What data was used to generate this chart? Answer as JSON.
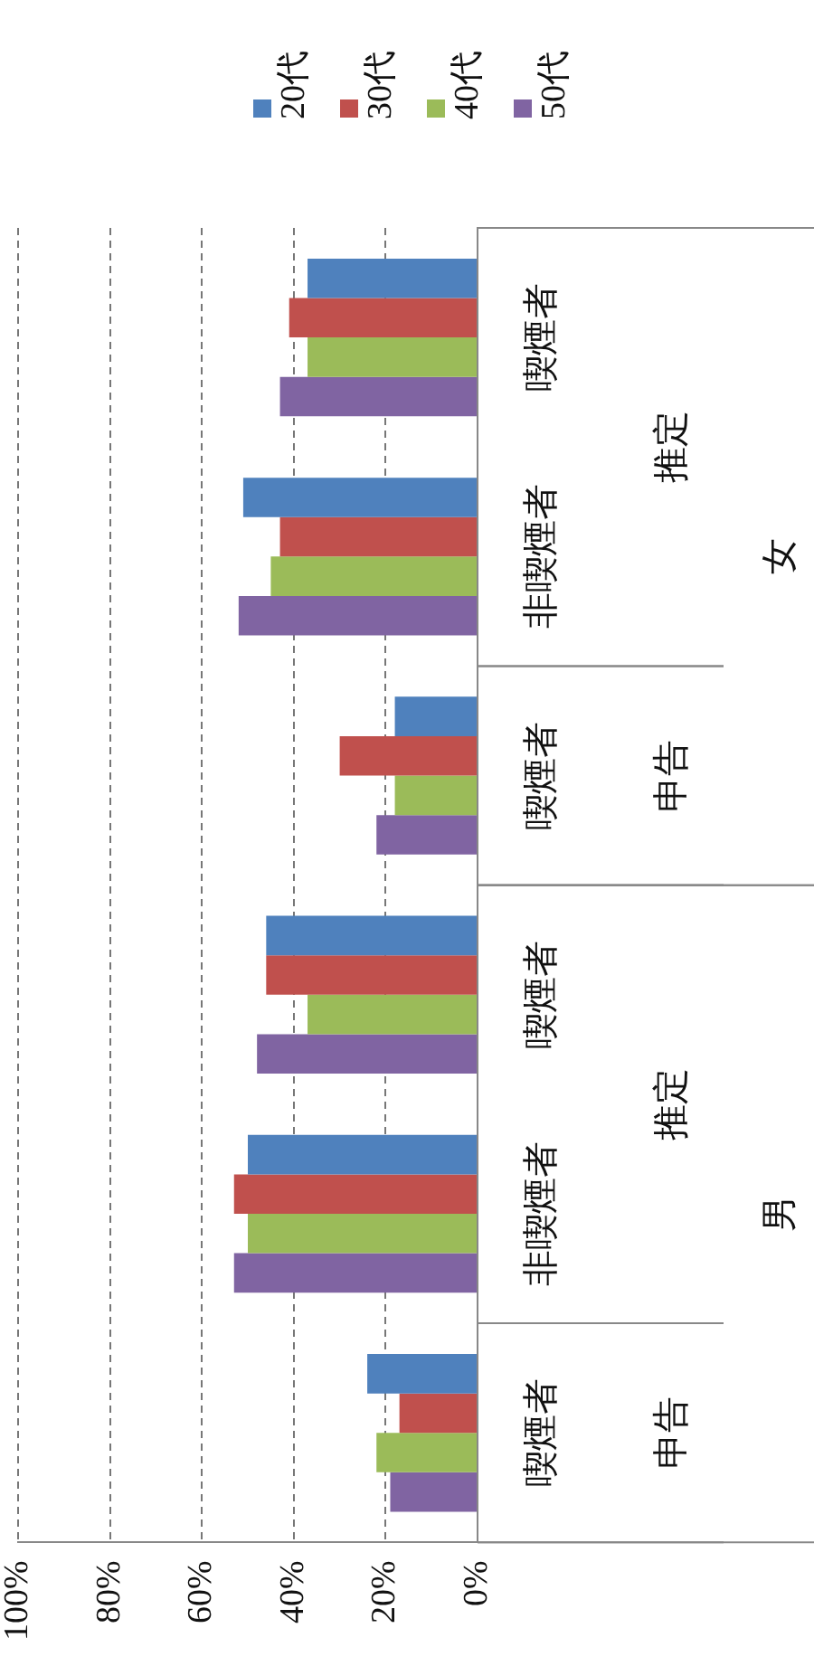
{
  "chart_data": {
    "type": "bar",
    "orientation": "horizontal",
    "categories": [
      "喫煙者",
      "非喫煙者",
      "喫煙者",
      "喫煙者",
      "非喫煙者",
      "喫煙者"
    ],
    "annotations": [
      "推定",
      "申告",
      "推定",
      "申告",
      "女",
      "男"
    ],
    "series": [
      {
        "name": "20代",
        "color": "#4f81bd",
        "values": [
          37,
          51,
          18,
          46,
          50,
          24
        ]
      },
      {
        "name": "30代",
        "color": "#c0504d",
        "values": [
          41,
          43,
          30,
          46,
          53,
          17
        ]
      },
      {
        "name": "40代",
        "color": "#9bbb59",
        "values": [
          37,
          45,
          18,
          37,
          50,
          22
        ]
      },
      {
        "name": "50代",
        "color": "#8064a2",
        "values": [
          43,
          52,
          22,
          48,
          53,
          19
        ]
      }
    ],
    "xlim": [
      100,
      0
    ],
    "xticks": [
      {
        "value": 100,
        "label": "100%"
      },
      {
        "value": 80,
        "label": "80%"
      },
      {
        "value": 60,
        "label": "60%"
      },
      {
        "value": 40,
        "label": "40%"
      },
      {
        "value": 20,
        "label": "20%"
      },
      {
        "value": 0,
        "label": "0%"
      }
    ],
    "grid": "x",
    "legend": "top"
  }
}
